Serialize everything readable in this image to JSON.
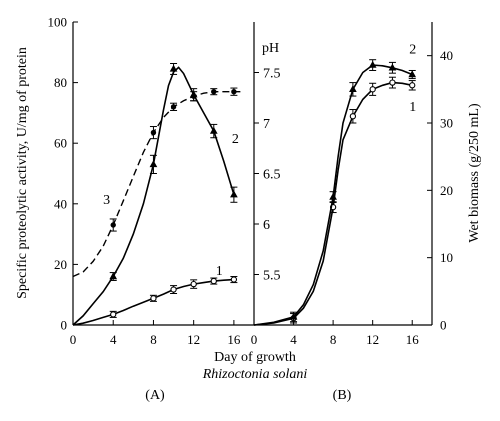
{
  "chart_data": [
    {
      "panel": "(A)",
      "type": "line",
      "xlabel": "Day of growth",
      "subtitle": "Rhizoctonia solani",
      "ylabel": "Specific proteolytic activity, U/mg of protein",
      "xlim": [
        0,
        18
      ],
      "ylim": [
        0,
        100
      ],
      "x_ticks": [
        0,
        4,
        8,
        12,
        16
      ],
      "y_ticks": [
        0,
        20,
        40,
        60,
        80,
        100
      ],
      "series": [
        {
          "name": "1",
          "style": "solid",
          "marker": "open-circle",
          "curve": [
            [
              0,
              0
            ],
            [
              1,
              0.6
            ],
            [
              2,
              1.5
            ],
            [
              3,
              2.5
            ],
            [
              4,
              3.5
            ],
            [
              5,
              4.8
            ],
            [
              6,
              6.2
            ],
            [
              7,
              7.5
            ],
            [
              8,
              8.8
            ],
            [
              9,
              10.2
            ],
            [
              10,
              11.7
            ],
            [
              11,
              12.7
            ],
            [
              12,
              13.5
            ],
            [
              13,
              14
            ],
            [
              14,
              14.5
            ],
            [
              15,
              14.8
            ],
            [
              16,
              15
            ]
          ],
          "points": [
            [
              4,
              3.5,
              1
            ],
            [
              8,
              8.8,
              1
            ],
            [
              10,
              11.7,
              1.3
            ],
            [
              12,
              13.5,
              1.4
            ],
            [
              14,
              14.5,
              1
            ],
            [
              16,
              15,
              1
            ]
          ]
        },
        {
          "name": "2",
          "style": "solid",
          "marker": "filled-triangle",
          "curve": [
            [
              0,
              0
            ],
            [
              1,
              3
            ],
            [
              2,
              7
            ],
            [
              3,
              11
            ],
            [
              4,
              16
            ],
            [
              5,
              22
            ],
            [
              6,
              30
            ],
            [
              7,
              40
            ],
            [
              8,
              53
            ],
            [
              9,
              71
            ],
            [
              9.5,
              79
            ],
            [
              10,
              83.5
            ],
            [
              10.5,
              85
            ],
            [
              11,
              83
            ],
            [
              12,
              76
            ],
            [
              13,
              70
            ],
            [
              14,
              64
            ],
            [
              15,
              54
            ],
            [
              16,
              43
            ]
          ],
          "points": [
            [
              4,
              16,
              1.3
            ],
            [
              8,
              53,
              3
            ],
            [
              10,
              84.5,
              1.8
            ],
            [
              12,
              76,
              2
            ],
            [
              14,
              64,
              2.2
            ],
            [
              16,
              43,
              2.5
            ]
          ]
        },
        {
          "name": "3",
          "style": "dashed",
          "marker": "filled-dot",
          "curve": [
            [
              0,
              16
            ],
            [
              1,
              17.5
            ],
            [
              2,
              21
            ],
            [
              3,
              26
            ],
            [
              4,
              33
            ],
            [
              5,
              41
            ],
            [
              6,
              49
            ],
            [
              7,
              57
            ],
            [
              8,
              63.5
            ],
            [
              9,
              68.5
            ],
            [
              10,
              72
            ],
            [
              11,
              74
            ],
            [
              12,
              75.5
            ],
            [
              13,
              76.5
            ],
            [
              14,
              77
            ],
            [
              15,
              77
            ],
            [
              16,
              77
            ],
            [
              17,
              77
            ]
          ],
          "points": [
            [
              4,
              33,
              2
            ],
            [
              8,
              63.5,
              2
            ],
            [
              10,
              72,
              1.2
            ],
            [
              12,
              75.5,
              1.5
            ],
            [
              14,
              77,
              1
            ],
            [
              16,
              77,
              1.2
            ]
          ]
        }
      ]
    },
    {
      "panel": "(B)",
      "type": "line",
      "ylabel_left": "pH",
      "ylabel_right": "Wet biomass (g/250 mL)",
      "xlim": [
        0,
        18
      ],
      "ylim": [
        0,
        45
      ],
      "x_ticks": [
        0,
        4,
        8,
        12,
        16
      ],
      "y_ticks_right": [
        0,
        10,
        20,
        30,
        40
      ],
      "pH_ticks": [
        {
          "label": "5.5",
          "y": 7.5
        },
        {
          "label": "6",
          "y": 15
        },
        {
          "label": "6.5",
          "y": 22.5
        },
        {
          "label": "7",
          "y": 30
        },
        {
          "label": "7.5",
          "y": 37.5
        }
      ],
      "series": [
        {
          "name": "1",
          "marker": "open-circle",
          "curve": [
            [
              0,
              0
            ],
            [
              2,
              0.3
            ],
            [
              4,
              1
            ],
            [
              5,
              2.5
            ],
            [
              6,
              5
            ],
            [
              7,
              9.5
            ],
            [
              8,
              17.5
            ],
            [
              8.5,
              23
            ],
            [
              9,
              27.5
            ],
            [
              10,
              31
            ],
            [
              11,
              33.5
            ],
            [
              12,
              35
            ],
            [
              13,
              35.6
            ],
            [
              14,
              36
            ],
            [
              15,
              35.9
            ],
            [
              16,
              35.6
            ]
          ],
          "points": [
            [
              4,
              1,
              0.7
            ],
            [
              8,
              17.5,
              0.8
            ],
            [
              10,
              31,
              1
            ],
            [
              12,
              35,
              0.9
            ],
            [
              14,
              36,
              0.8
            ],
            [
              16,
              35.6,
              0.7
            ]
          ]
        },
        {
          "name": "2",
          "marker": "filled-triangle",
          "curve": [
            [
              0,
              0
            ],
            [
              2,
              0.4
            ],
            [
              4,
              1.2
            ],
            [
              5,
              3
            ],
            [
              6,
              6
            ],
            [
              7,
              11
            ],
            [
              8,
              19
            ],
            [
              8.5,
              25
            ],
            [
              9,
              30
            ],
            [
              10,
              35
            ],
            [
              11,
              37.5
            ],
            [
              12,
              38.6
            ],
            [
              13,
              38.5
            ],
            [
              14,
              38.2
            ],
            [
              15,
              37.8
            ],
            [
              16,
              37.2
            ]
          ],
          "points": [
            [
              4,
              1.2,
              0.7
            ],
            [
              8,
              19,
              0.8
            ],
            [
              10,
              35,
              1
            ],
            [
              12,
              38.6,
              0.8
            ],
            [
              14,
              38.2,
              0.8
            ],
            [
              16,
              37.2,
              0.6
            ]
          ]
        }
      ]
    }
  ]
}
